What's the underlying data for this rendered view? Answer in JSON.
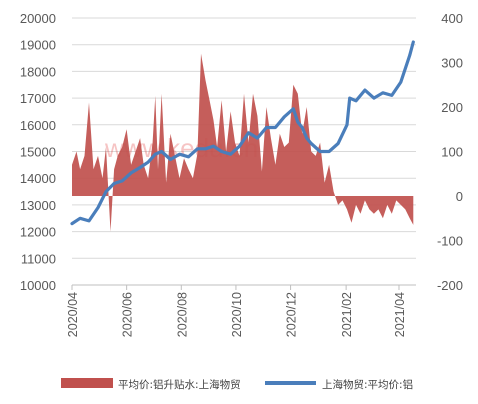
{
  "chart_data": {
    "type": "area+line",
    "left_axis": {
      "ticks": [
        10000,
        11000,
        12000,
        13000,
        14000,
        15000,
        16000,
        17000,
        18000,
        19000,
        20000
      ],
      "ylim": [
        10000,
        20000
      ]
    },
    "right_axis": {
      "ticks": [
        -200,
        -100,
        0,
        100,
        200,
        300,
        400
      ],
      "ylim": [
        -200,
        400
      ]
    },
    "x_ticks": [
      "2020/04",
      "2020/06",
      "2020/08",
      "2020/10",
      "2020/12",
      "2021/02",
      "2021/04"
    ],
    "grid": "horizontal",
    "legend_position": "bottom",
    "watermark": "www.kedu.cn",
    "series": [
      {
        "name": "平均价:铝升贴水:上海物贸",
        "axis": "right",
        "type": "area",
        "color": "#c0504d",
        "x": [
          "2020-04-01",
          "2020-04-06",
          "2020-04-10",
          "2020-04-15",
          "2020-04-20",
          "2020-04-25",
          "2020-04-30",
          "2020-05-05",
          "2020-05-09",
          "2020-05-14",
          "2020-05-18",
          "2020-05-22",
          "2020-05-27",
          "2020-06-01",
          "2020-06-06",
          "2020-06-11",
          "2020-06-16",
          "2020-06-20",
          "2020-06-25",
          "2020-06-30",
          "2020-07-03",
          "2020-07-06",
          "2020-07-10",
          "2020-07-15",
          "2020-07-20",
          "2020-07-25",
          "2020-07-30",
          "2020-08-04",
          "2020-08-09",
          "2020-08-14",
          "2020-08-19",
          "2020-08-23",
          "2020-08-28",
          "2020-09-02",
          "2020-09-06",
          "2020-09-10",
          "2020-09-15",
          "2020-09-20",
          "2020-09-25",
          "2020-09-30",
          "2020-10-05",
          "2020-10-10",
          "2020-10-15",
          "2020-10-20",
          "2020-10-25",
          "2020-10-30",
          "2020-11-04",
          "2020-11-09",
          "2020-11-14",
          "2020-11-19",
          "2020-11-24",
          "2020-11-29",
          "2020-12-04",
          "2020-12-09",
          "2020-12-14",
          "2020-12-19",
          "2020-12-24",
          "2020-12-29",
          "2021-01-03",
          "2021-01-08",
          "2021-01-13",
          "2021-01-18",
          "2021-01-23",
          "2021-01-28",
          "2021-02-02",
          "2021-02-07",
          "2021-02-12",
          "2021-02-17",
          "2021-02-22",
          "2021-02-27",
          "2021-03-04",
          "2021-03-09",
          "2021-03-14",
          "2021-03-19",
          "2021-03-24",
          "2021-03-29",
          "2021-04-03",
          "2021-04-08",
          "2021-04-13",
          "2021-04-17"
        ],
        "values": [
          70,
          100,
          60,
          90,
          210,
          60,
          90,
          40,
          110,
          -80,
          60,
          90,
          110,
          150,
          70,
          100,
          130,
          70,
          40,
          120,
          225,
          60,
          230,
          30,
          140,
          90,
          40,
          85,
          60,
          40,
          95,
          320,
          260,
          210,
          170,
          110,
          215,
          100,
          190,
          120,
          90,
          230,
          120,
          230,
          180,
          55,
          200,
          130,
          70,
          140,
          110,
          120,
          250,
          230,
          140,
          200,
          100,
          90,
          120,
          30,
          70,
          10,
          -20,
          -10,
          -30,
          -60,
          -20,
          -40,
          -10,
          -30,
          -40,
          -30,
          -50,
          -20,
          -40,
          -10,
          -20,
          -30,
          -50,
          -65
        ]
      },
      {
        "name": "上海物贸:平均价:铝",
        "axis": "left",
        "type": "line",
        "color": "#4a7ebb",
        "x": [
          "2020-04-01",
          "2020-04-10",
          "2020-04-20",
          "2020-04-30",
          "2020-05-09",
          "2020-05-18",
          "2020-05-27",
          "2020-06-06",
          "2020-06-16",
          "2020-06-25",
          "2020-07-03",
          "2020-07-10",
          "2020-07-20",
          "2020-07-30",
          "2020-08-09",
          "2020-08-19",
          "2020-08-28",
          "2020-09-06",
          "2020-09-15",
          "2020-09-25",
          "2020-10-05",
          "2020-10-15",
          "2020-10-25",
          "2020-11-04",
          "2020-11-14",
          "2020-11-24",
          "2020-12-04",
          "2020-12-09",
          "2020-12-14",
          "2020-12-19",
          "2020-12-24",
          "2021-01-03",
          "2021-01-13",
          "2021-01-23",
          "2021-02-02",
          "2021-02-05",
          "2021-02-12",
          "2021-02-22",
          "2021-03-04",
          "2021-03-14",
          "2021-03-24",
          "2021-04-03",
          "2021-04-13",
          "2021-04-17"
        ],
        "values": [
          12300,
          12500,
          12400,
          12900,
          13500,
          13800,
          13900,
          14200,
          14400,
          14600,
          14900,
          15000,
          14700,
          14900,
          14800,
          15100,
          15100,
          15200,
          15000,
          14900,
          15200,
          15700,
          15500,
          15900,
          15900,
          16300,
          16600,
          16100,
          15900,
          15500,
          15300,
          15000,
          15000,
          15300,
          16000,
          17000,
          16900,
          17300,
          17000,
          17200,
          17100,
          17600,
          18600,
          19100
        ]
      }
    ]
  }
}
